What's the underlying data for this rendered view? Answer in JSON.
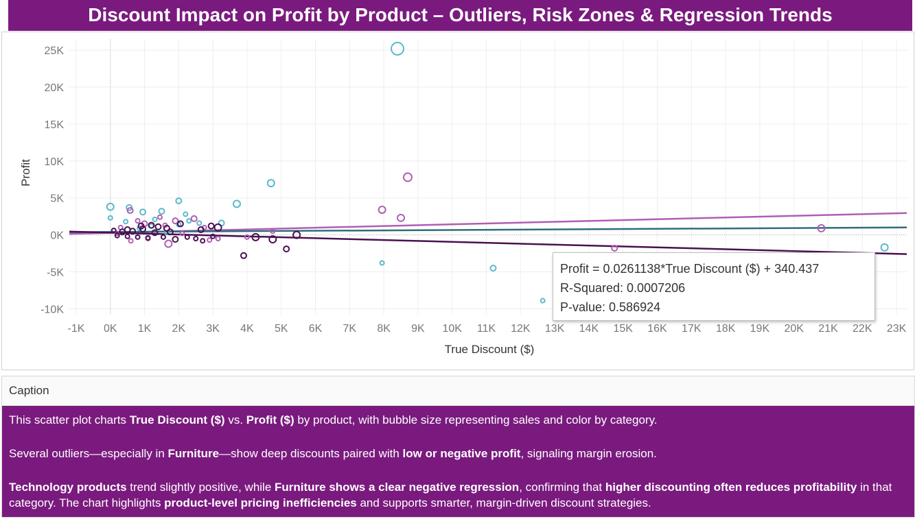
{
  "title": "Discount Impact on Profit by Product – Outliers, Risk Zones & Regression Trends",
  "colors": {
    "header_bg": "#7a1a7e",
    "technology": "#5bb8cc",
    "office_supplies": "#b15db5",
    "furniture": "#4a1050",
    "trend_technology": "#2e6e7a",
    "trend_office": "#b05db5",
    "trend_furniture": "#4a1050"
  },
  "chart_data": {
    "type": "scatter",
    "title": "",
    "xlabel": "True Discount ($)",
    "ylabel": "Profit",
    "xlim": [
      -1200,
      23300
    ],
    "ylim": [
      -10800,
      26500
    ],
    "x_ticks": [
      -1000,
      0,
      1000,
      2000,
      3000,
      4000,
      5000,
      6000,
      7000,
      8000,
      9000,
      10000,
      11000,
      12000,
      13000,
      14000,
      15000,
      16000,
      17000,
      18000,
      19000,
      20000,
      21000,
      22000,
      23000
    ],
    "x_tick_labels": [
      "-1K",
      "0K",
      "1K",
      "2K",
      "3K",
      "4K",
      "5K",
      "6K",
      "7K",
      "8K",
      "9K",
      "10K",
      "11K",
      "12K",
      "13K",
      "14K",
      "15K",
      "16K",
      "17K",
      "18K",
      "19K",
      "20K",
      "21K",
      "22K",
      "23K"
    ],
    "y_ticks": [
      -10000,
      -5000,
      0,
      5000,
      10000,
      15000,
      20000,
      25000
    ],
    "y_tick_labels": [
      "-10K",
      "-5K",
      "0K",
      "5K",
      "10K",
      "15K",
      "20K",
      "25K"
    ],
    "grid": true,
    "series": [
      {
        "color": "#5bb8cc",
        "points": [
          [
            8400,
            25200,
            9
          ],
          [
            4700,
            7000,
            5
          ],
          [
            3700,
            4200,
            5
          ],
          [
            2000,
            4600,
            4
          ],
          [
            0,
            3800,
            5
          ],
          [
            550,
            3700,
            4
          ],
          [
            1500,
            3200,
            4
          ],
          [
            950,
            3100,
            4
          ],
          [
            2200,
            2800,
            3
          ],
          [
            0,
            2300,
            3
          ],
          [
            1300,
            2100,
            3
          ],
          [
            2300,
            1900,
            3
          ],
          [
            450,
            1800,
            3
          ],
          [
            2600,
            1600,
            3
          ],
          [
            3250,
            1600,
            4
          ],
          [
            2000,
            1400,
            3
          ],
          [
            1200,
            1200,
            3
          ],
          [
            7950,
            -3800,
            3
          ],
          [
            11200,
            -4500,
            4
          ],
          [
            12650,
            -8900,
            3
          ],
          [
            22650,
            -1700,
            5
          ],
          [
            100,
            600,
            3
          ],
          [
            850,
            900,
            3
          ],
          [
            1650,
            300,
            3
          ]
        ]
      },
      {
        "color": "#b15db5",
        "points": [
          [
            8700,
            7800,
            6
          ],
          [
            7950,
            3400,
            5
          ],
          [
            8500,
            2300,
            5
          ],
          [
            20800,
            900,
            5
          ],
          [
            14750,
            -1800,
            4
          ],
          [
            1700,
            -1200,
            5
          ],
          [
            580,
            3300,
            4
          ],
          [
            1000,
            1500,
            4
          ],
          [
            1450,
            2400,
            3
          ],
          [
            2450,
            2200,
            4
          ],
          [
            800,
            1900,
            3
          ],
          [
            2900,
            -700,
            3
          ],
          [
            4000,
            -300,
            3
          ],
          [
            600,
            -800,
            3
          ],
          [
            1600,
            1300,
            3
          ],
          [
            2100,
            200,
            3
          ],
          [
            300,
            1000,
            3
          ],
          [
            4750,
            500,
            3
          ],
          [
            1900,
            1900,
            4
          ],
          [
            3150,
            -500,
            3
          ],
          [
            2750,
            1000,
            3
          ],
          [
            200,
            200,
            3
          ],
          [
            1100,
            -500,
            3
          ]
        ]
      },
      {
        "color": "#4a1050",
        "points": [
          [
            3900,
            -2800,
            4
          ],
          [
            5150,
            -1900,
            4
          ],
          [
            5450,
            0,
            5
          ],
          [
            4750,
            -600,
            5
          ],
          [
            4250,
            -300,
            5
          ],
          [
            3150,
            1000,
            5
          ],
          [
            3000,
            -200,
            3
          ],
          [
            2950,
            1200,
            4
          ],
          [
            2650,
            700,
            4
          ],
          [
            2500,
            -500,
            3
          ],
          [
            2050,
            1500,
            4
          ],
          [
            1900,
            -600,
            4
          ],
          [
            1650,
            900,
            4
          ],
          [
            1550,
            -300,
            3
          ],
          [
            1400,
            1100,
            4
          ],
          [
            1300,
            300,
            4
          ],
          [
            1100,
            -400,
            3
          ],
          [
            950,
            800,
            4
          ],
          [
            800,
            -300,
            3
          ],
          [
            650,
            500,
            4
          ],
          [
            500,
            -200,
            3
          ],
          [
            350,
            400,
            4
          ],
          [
            200,
            -100,
            3
          ],
          [
            100,
            600,
            3
          ],
          [
            1750,
            400,
            4
          ],
          [
            2250,
            -300,
            3
          ],
          [
            2700,
            -800,
            3
          ],
          [
            1200,
            1300,
            4
          ],
          [
            500,
            700,
            4
          ],
          [
            900,
            1200,
            4
          ]
        ]
      }
    ],
    "trend_lines": [
      {
        "color": "#b05db5",
        "x": [
          -1200,
          23300
        ],
        "y": [
          140,
          2960
        ]
      },
      {
        "color": "#2e6e7a",
        "x": [
          -1200,
          23300
        ],
        "y": [
          370,
          1010
        ]
      },
      {
        "color": "#4a1050",
        "x": [
          -1200,
          23300
        ],
        "y": [
          450,
          -2600
        ]
      }
    ]
  },
  "tooltip": {
    "equation": "Profit = 0.0261138*True Discount ($) + 340.437",
    "r_squared": "R-Squared: 0.0007206",
    "p_value": "P-value: 0.586924"
  },
  "caption": {
    "header": "Caption",
    "p1": [
      {
        "t": "This scatter plot charts ",
        "b": false
      },
      {
        "t": "True Discount ($)",
        "b": true
      },
      {
        "t": " vs. ",
        "b": false
      },
      {
        "t": "Profit ($)",
        "b": true
      },
      {
        "t": " by product, with bubble size representing sales and color by category.",
        "b": false
      }
    ],
    "p2": [
      {
        "t": "Several outliers—especially in ",
        "b": false
      },
      {
        "t": "Furniture",
        "b": true
      },
      {
        "t": "—show deep discounts paired with ",
        "b": false
      },
      {
        "t": "low or negative profit",
        "b": true
      },
      {
        "t": ", signaling margin erosion.",
        "b": false
      }
    ],
    "p3": [
      {
        "t": "Technology products",
        "b": true
      },
      {
        "t": " trend slightly positive, while ",
        "b": false
      },
      {
        "t": "Furniture shows a clear negative regression",
        "b": true
      },
      {
        "t": ", confirming that ",
        "b": false
      },
      {
        "t": "higher discounting often reduces profitability",
        "b": true
      },
      {
        "t": " in that category.  The chart highlights ",
        "b": false
      },
      {
        "t": "product-level pricing inefficiencies",
        "b": true
      },
      {
        "t": " and supports smarter, margin-driven discount strategies.",
        "b": false
      }
    ]
  }
}
